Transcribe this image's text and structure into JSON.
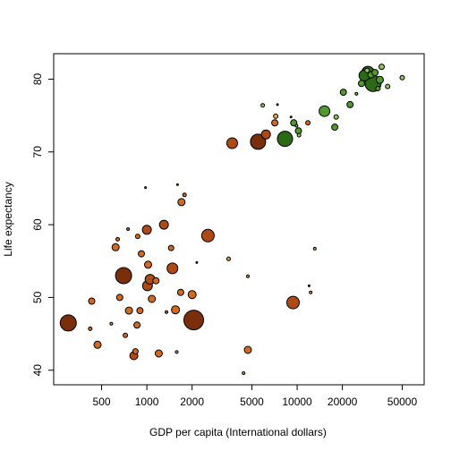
{
  "chart_data": {
    "type": "scatter",
    "title": "",
    "xlabel": "GDP per capita (International dollars)",
    "ylabel": "Life expectancy",
    "x_scale": "log",
    "xlim": [
      240,
      70000
    ],
    "ylim": [
      38,
      83.5
    ],
    "x_ticks": [
      500,
      1000,
      2000,
      5000,
      10000,
      20000,
      50000
    ],
    "x_tick_labels": [
      "500",
      "1000",
      "2000",
      "5000",
      "10000",
      "20000",
      "50000"
    ],
    "y_ticks": [
      40,
      50,
      60,
      70,
      80
    ],
    "y_tick_labels": [
      "40",
      "50",
      "60",
      "70",
      "80"
    ],
    "grid": false,
    "legend": "none",
    "point_size_encodes": "population (relative)",
    "colors": {
      "dark_brown": "#7a2e0a",
      "mid_brown": "#b04a14",
      "orange": "#d2691e",
      "light_orange": "#e8a050",
      "dark_green": "#2a6a14",
      "green": "#4f9a2a",
      "light_green": "#8bc45a",
      "outline": "#000000"
    },
    "points": [
      {
        "x": 300,
        "y": 46.5,
        "size": 9,
        "color": "dark_brown"
      },
      {
        "x": 430,
        "y": 49.5,
        "size": 3.5,
        "color": "orange"
      },
      {
        "x": 420,
        "y": 45.7,
        "size": 2,
        "color": "orange"
      },
      {
        "x": 470,
        "y": 43.5,
        "size": 4,
        "color": "orange"
      },
      {
        "x": 580,
        "y": 46.4,
        "size": 1.5,
        "color": "light_orange"
      },
      {
        "x": 620,
        "y": 56.9,
        "size": 4,
        "color": "orange"
      },
      {
        "x": 640,
        "y": 58.0,
        "size": 2,
        "color": "orange"
      },
      {
        "x": 660,
        "y": 50.0,
        "size": 3.5,
        "color": "orange"
      },
      {
        "x": 700,
        "y": 53.0,
        "size": 9,
        "color": "dark_brown"
      },
      {
        "x": 720,
        "y": 44.8,
        "size": 2.5,
        "color": "orange"
      },
      {
        "x": 750,
        "y": 59.4,
        "size": 1.5,
        "color": "orange"
      },
      {
        "x": 760,
        "y": 48.2,
        "size": 4,
        "color": "orange"
      },
      {
        "x": 820,
        "y": 42.0,
        "size": 4.5,
        "color": "mid_brown"
      },
      {
        "x": 840,
        "y": 42.6,
        "size": 3,
        "color": "orange"
      },
      {
        "x": 860,
        "y": 46.2,
        "size": 3.5,
        "color": "orange"
      },
      {
        "x": 870,
        "y": 58.4,
        "size": 2.5,
        "color": "orange"
      },
      {
        "x": 900,
        "y": 48.2,
        "size": 3.5,
        "color": "orange"
      },
      {
        "x": 920,
        "y": 56.0,
        "size": 3.5,
        "color": "orange"
      },
      {
        "x": 980,
        "y": 65.1,
        "size": 1,
        "color": "dark_brown"
      },
      {
        "x": 1000,
        "y": 59.3,
        "size": 5,
        "color": "mid_brown"
      },
      {
        "x": 1010,
        "y": 51.6,
        "size": 5.5,
        "color": "mid_brown"
      },
      {
        "x": 1020,
        "y": 54.5,
        "size": 4,
        "color": "orange"
      },
      {
        "x": 1050,
        "y": 52.5,
        "size": 5.5,
        "color": "mid_brown"
      },
      {
        "x": 1080,
        "y": 49.8,
        "size": 4,
        "color": "orange"
      },
      {
        "x": 1150,
        "y": 52.3,
        "size": 3.5,
        "color": "orange"
      },
      {
        "x": 1200,
        "y": 42.3,
        "size": 4,
        "color": "orange"
      },
      {
        "x": 1300,
        "y": 60.0,
        "size": 5,
        "color": "mid_brown"
      },
      {
        "x": 1350,
        "y": 48.0,
        "size": 1.5,
        "color": "orange"
      },
      {
        "x": 1450,
        "y": 56.8,
        "size": 3,
        "color": "orange"
      },
      {
        "x": 1480,
        "y": 54.0,
        "size": 6,
        "color": "mid_brown"
      },
      {
        "x": 1550,
        "y": 48.3,
        "size": 4.5,
        "color": "orange"
      },
      {
        "x": 1580,
        "y": 42.5,
        "size": 1.5,
        "color": "light_orange"
      },
      {
        "x": 1600,
        "y": 65.5,
        "size": 1,
        "color": "mid_brown"
      },
      {
        "x": 1680,
        "y": 50.7,
        "size": 3.5,
        "color": "orange"
      },
      {
        "x": 1700,
        "y": 63.1,
        "size": 4,
        "color": "orange"
      },
      {
        "x": 1780,
        "y": 64.1,
        "size": 2,
        "color": "orange"
      },
      {
        "x": 2050,
        "y": 46.9,
        "size": 11,
        "color": "dark_brown"
      },
      {
        "x": 2000,
        "y": 50.4,
        "size": 4.5,
        "color": "orange"
      },
      {
        "x": 2150,
        "y": 54.8,
        "size": 1,
        "color": "dark_brown"
      },
      {
        "x": 2550,
        "y": 58.5,
        "size": 7,
        "color": "mid_brown"
      },
      {
        "x": 3500,
        "y": 55.3,
        "size": 2,
        "color": "light_orange"
      },
      {
        "x": 3700,
        "y": 71.2,
        "size": 6,
        "color": "mid_brown"
      },
      {
        "x": 4400,
        "y": 39.6,
        "size": 1.5,
        "color": "light_orange"
      },
      {
        "x": 4700,
        "y": 42.8,
        "size": 4,
        "color": "orange"
      },
      {
        "x": 4700,
        "y": 52.9,
        "size": 1.5,
        "color": "light_orange"
      },
      {
        "x": 5500,
        "y": 71.4,
        "size": 8.5,
        "color": "dark_brown"
      },
      {
        "x": 5900,
        "y": 76.4,
        "size": 2,
        "color": "light_green"
      },
      {
        "x": 6200,
        "y": 72.4,
        "size": 5,
        "color": "mid_brown"
      },
      {
        "x": 7100,
        "y": 74.0,
        "size": 3.5,
        "color": "orange"
      },
      {
        "x": 7200,
        "y": 74.9,
        "size": 2.5,
        "color": "light_orange"
      },
      {
        "x": 7400,
        "y": 76.5,
        "size": 1,
        "color": "dark_brown"
      },
      {
        "x": 8300,
        "y": 71.8,
        "size": 8.5,
        "color": "dark_green"
      },
      {
        "x": 9100,
        "y": 74.8,
        "size": 1,
        "color": "dark_green"
      },
      {
        "x": 9400,
        "y": 49.3,
        "size": 7,
        "color": "mid_brown"
      },
      {
        "x": 9500,
        "y": 74.0,
        "size": 3.5,
        "color": "green"
      },
      {
        "x": 9900,
        "y": 73.6,
        "size": 1.5,
        "color": "light_green"
      },
      {
        "x": 10200,
        "y": 72.9,
        "size": 3.5,
        "color": "green"
      },
      {
        "x": 10300,
        "y": 72.3,
        "size": 2,
        "color": "light_green"
      },
      {
        "x": 11800,
        "y": 74.0,
        "size": 2.5,
        "color": "orange"
      },
      {
        "x": 12000,
        "y": 51.6,
        "size": 1,
        "color": "dark_brown"
      },
      {
        "x": 12300,
        "y": 50.7,
        "size": 1.5,
        "color": "light_orange"
      },
      {
        "x": 13100,
        "y": 56.7,
        "size": 1.5,
        "color": "light_orange"
      },
      {
        "x": 15200,
        "y": 75.6,
        "size": 6,
        "color": "green"
      },
      {
        "x": 17800,
        "y": 73.4,
        "size": 3.5,
        "color": "green"
      },
      {
        "x": 18200,
        "y": 74.8,
        "size": 2.5,
        "color": "light_green"
      },
      {
        "x": 20300,
        "y": 78.2,
        "size": 3.5,
        "color": "green"
      },
      {
        "x": 22500,
        "y": 76.5,
        "size": 3.5,
        "color": "green"
      },
      {
        "x": 24800,
        "y": 78.0,
        "size": 1.5,
        "color": "light_green"
      },
      {
        "x": 26800,
        "y": 79.4,
        "size": 3.5,
        "color": "green"
      },
      {
        "x": 28000,
        "y": 80.5,
        "size": 6,
        "color": "dark_green"
      },
      {
        "x": 29200,
        "y": 81.2,
        "size": 2.5,
        "color": "light_green"
      },
      {
        "x": 29600,
        "y": 80.9,
        "size": 7,
        "color": "dark_green"
      },
      {
        "x": 31000,
        "y": 80.6,
        "size": 3.5,
        "color": "green"
      },
      {
        "x": 32000,
        "y": 79.4,
        "size": 9,
        "color": "dark_green"
      },
      {
        "x": 33000,
        "y": 80.9,
        "size": 3.5,
        "color": "green"
      },
      {
        "x": 34500,
        "y": 78.7,
        "size": 2.5,
        "color": "green"
      },
      {
        "x": 35500,
        "y": 79.9,
        "size": 4,
        "color": "green"
      },
      {
        "x": 36500,
        "y": 81.7,
        "size": 3,
        "color": "light_green"
      },
      {
        "x": 40000,
        "y": 79.0,
        "size": 2.5,
        "color": "light_green"
      },
      {
        "x": 50000,
        "y": 80.2,
        "size": 2.5,
        "color": "light_green"
      }
    ]
  }
}
